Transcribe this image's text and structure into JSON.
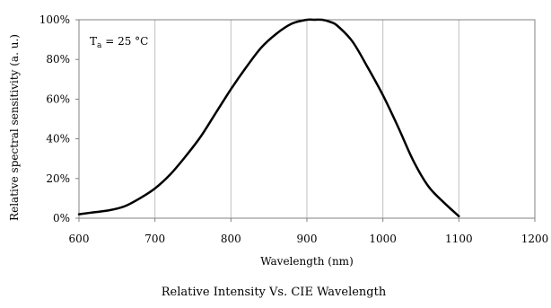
{
  "chart_data": {
    "type": "line",
    "title": "",
    "caption": "Relative Intensity Vs. CIE Wavelength",
    "xlabel": "Wavelength (nm)",
    "ylabel": "Relative spectral sensitivity  (a. u.)",
    "annotation": {
      "symbol": "T",
      "subscript": "a",
      "rest": " = 25 °C"
    },
    "xlim": [
      600,
      1200
    ],
    "ylim": [
      0,
      100
    ],
    "x_ticks": [
      600,
      700,
      800,
      900,
      1000,
      1100,
      1200
    ],
    "y_ticks": [
      0,
      20,
      40,
      60,
      80,
      100
    ],
    "y_tick_labels": [
      "0%",
      "20%",
      "40%",
      "60%",
      "80%",
      "100%"
    ],
    "grid": "vertical",
    "line_color": "#000000",
    "series": [
      {
        "x": [
          600,
          620,
          640,
          660,
          680,
          700,
          720,
          740,
          760,
          780,
          800,
          820,
          840,
          860,
          880,
          900,
          910,
          920,
          930,
          940,
          960,
          980,
          1000,
          1020,
          1040,
          1060,
          1080,
          1100
        ],
        "y": [
          2,
          3,
          4,
          6,
          10,
          15,
          22,
          31,
          41,
          53,
          65,
          76,
          86,
          93,
          98,
          100,
          100,
          100,
          99,
          97,
          89,
          76,
          62,
          46,
          29,
          16,
          8,
          1
        ]
      }
    ]
  }
}
